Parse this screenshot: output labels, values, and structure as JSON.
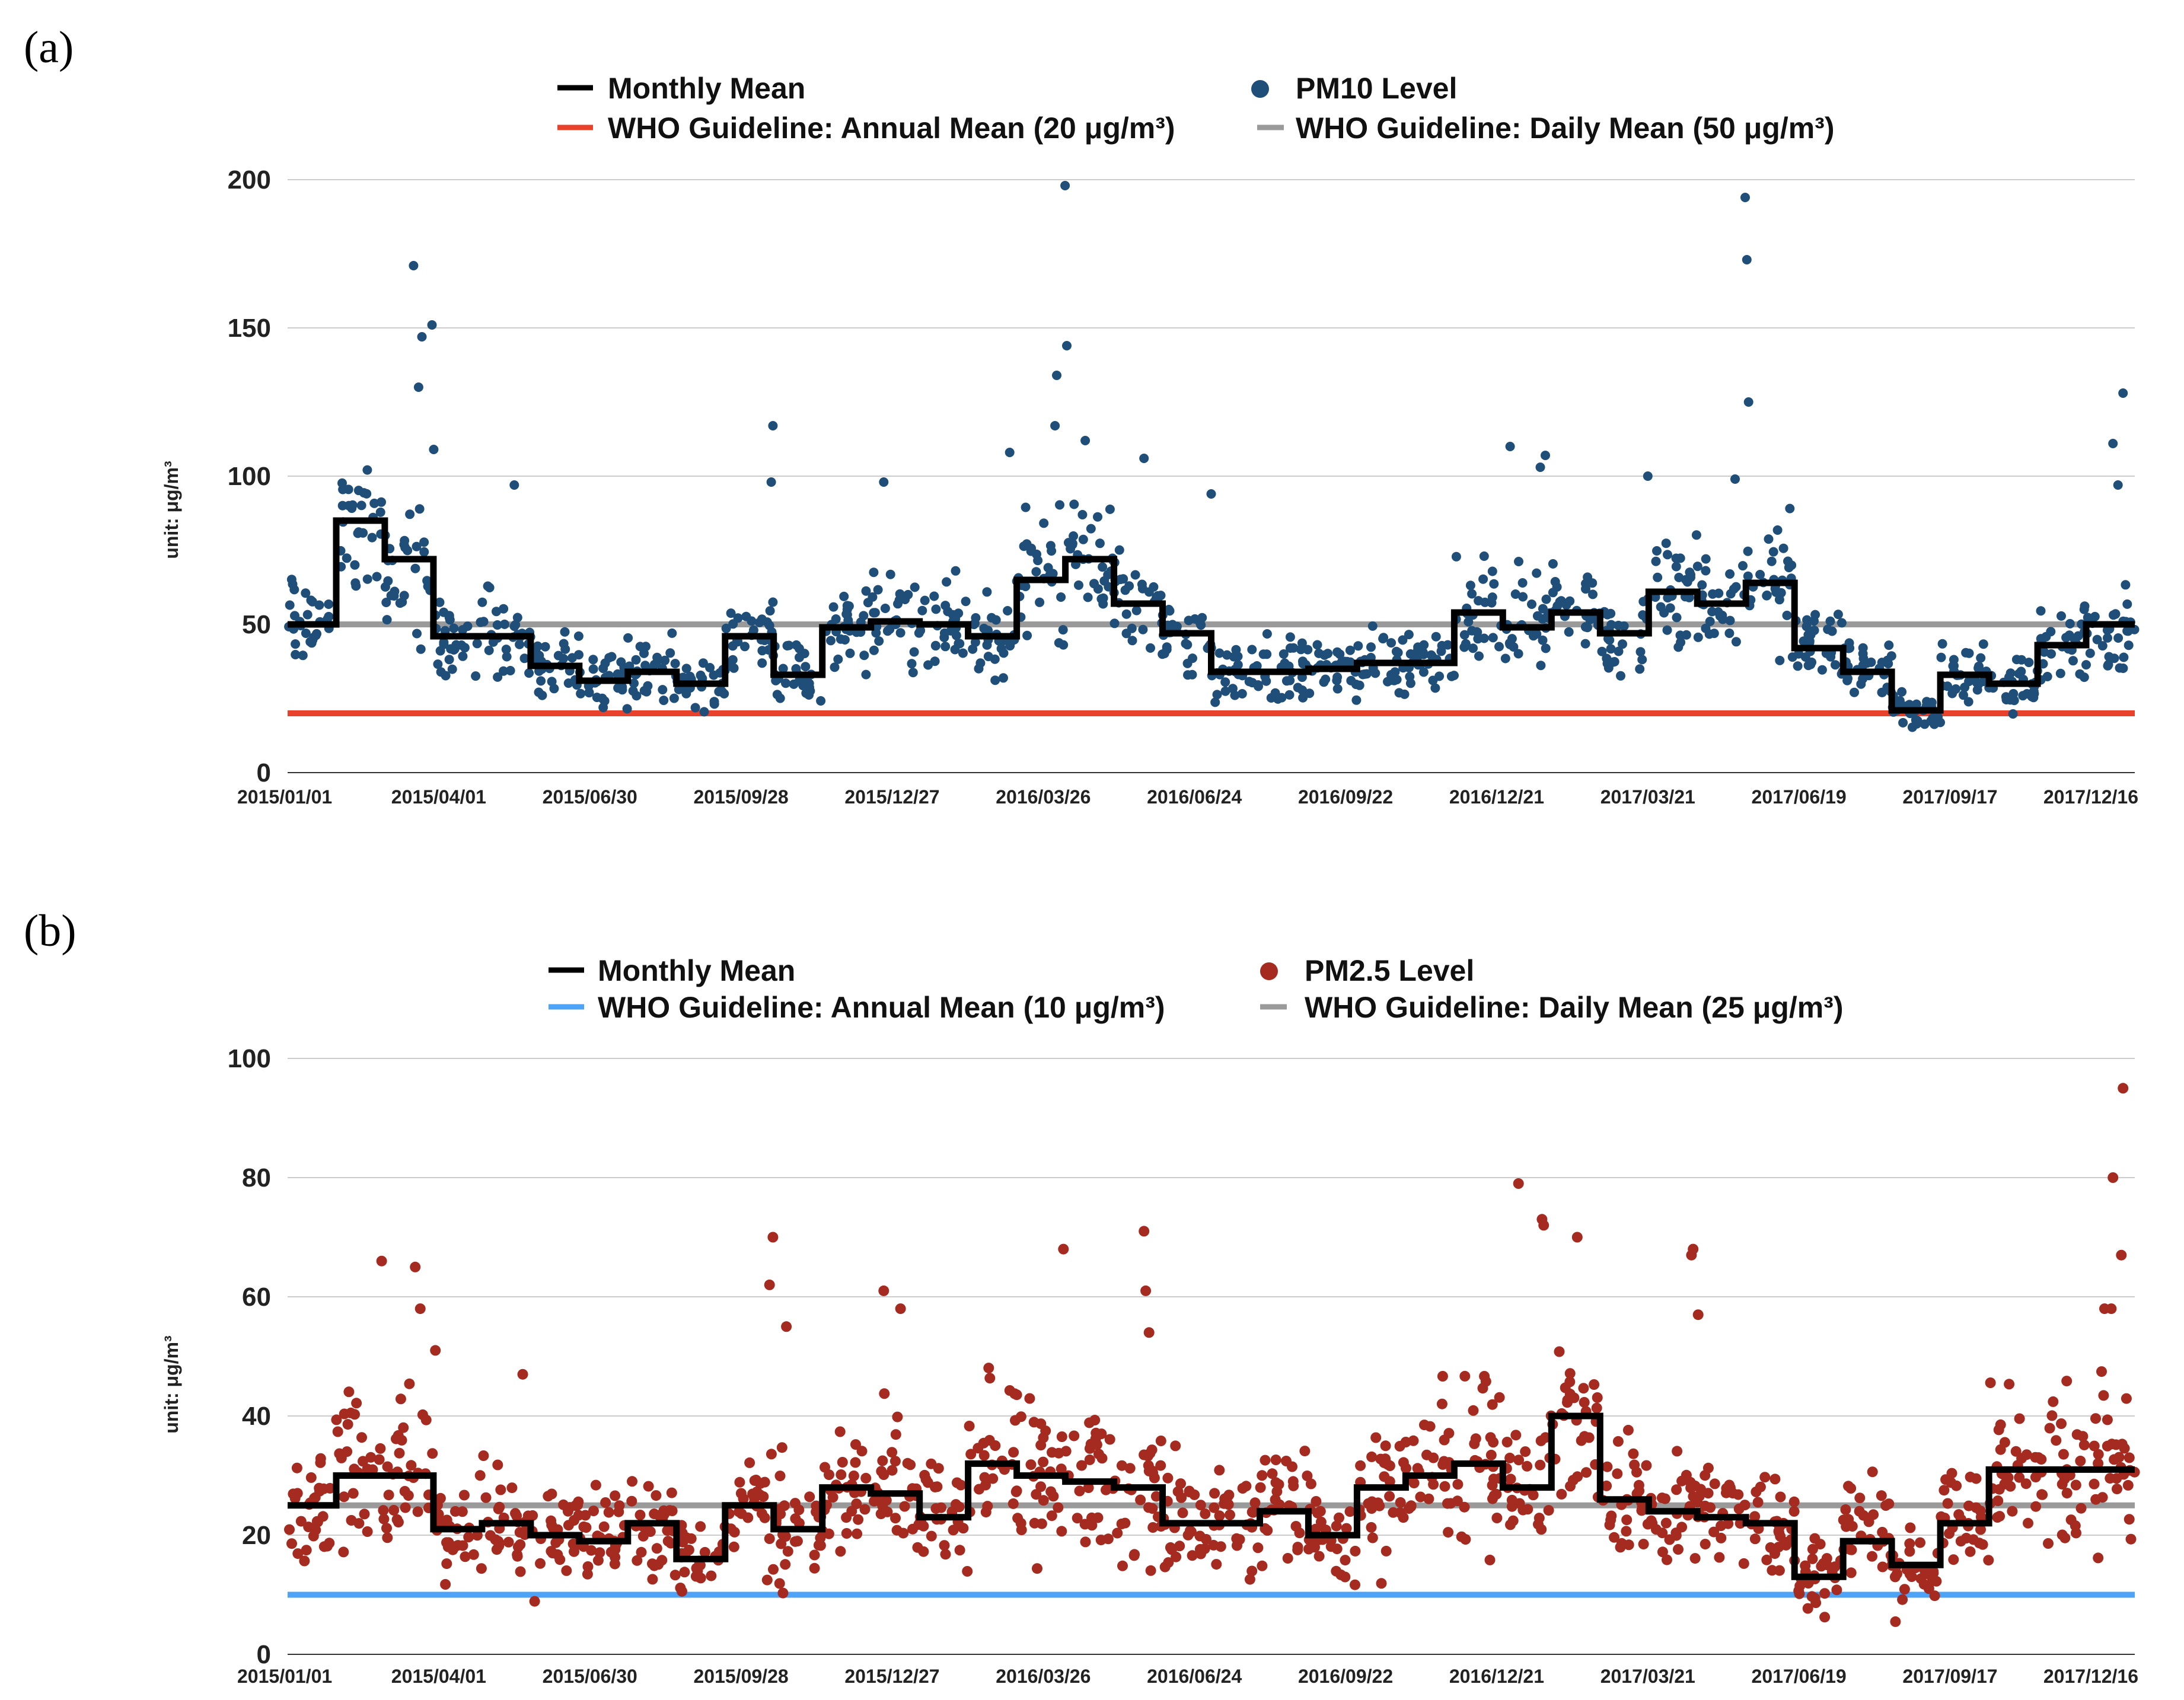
{
  "chart_data": [
    {
      "panel_label": "(a)",
      "type": "scatter",
      "ylabel": "unit: μg/m³",
      "ylim": [
        0,
        200
      ],
      "yticks": [
        0,
        50,
        100,
        150,
        200
      ],
      "xlim": [
        0,
        1100
      ],
      "x_unit": "days since 2015/01/01",
      "xticks": [
        {
          "day": 0,
          "label": "2015/01/01"
        },
        {
          "day": 90,
          "label": "2015/04/01"
        },
        {
          "day": 180,
          "label": "2015/06/30"
        },
        {
          "day": 270,
          "label": "2015/09/28"
        },
        {
          "day": 360,
          "label": "2015/12/27"
        },
        {
          "day": 450,
          "label": "2016/03/26"
        },
        {
          "day": 540,
          "label": "2016/06/24"
        },
        {
          "day": 630,
          "label": "2016/09/22"
        },
        {
          "day": 720,
          "label": "2016/12/21"
        },
        {
          "day": 810,
          "label": "2017/03/21"
        },
        {
          "day": 900,
          "label": "2017/06/19"
        },
        {
          "day": 990,
          "label": "2017/09/17"
        },
        {
          "day": 1080,
          "label": "2017/12/16"
        }
      ],
      "legend": {
        "monthly_mean": "Monthly Mean",
        "points": "PM10 Level",
        "annual_guideline": "WHO Guideline: Annual Mean (20 μg/m³)",
        "daily_guideline": "WHO Guideline: Daily Mean (50 μg/m³)"
      },
      "colors": {
        "points": "#1f4e79",
        "mean": "#000000",
        "annual": "#e8412c",
        "daily": "#9a9a9a",
        "grid": "#cccccc"
      },
      "guidelines": {
        "annual": 20,
        "daily": 50
      },
      "monthly_mean": [
        50,
        85,
        72,
        46,
        46,
        36,
        31,
        34,
        30,
        46,
        33,
        49,
        51,
        50,
        46,
        65,
        72,
        57,
        47,
        34,
        34,
        35,
        37,
        37,
        54,
        49,
        54,
        47,
        61,
        57,
        64,
        42,
        34,
        21,
        33,
        30,
        43,
        50
      ],
      "scatter_seed": 11,
      "points_per_month": 30,
      "noise_spread": 0.33,
      "outliers": [
        {
          "x": 75,
          "y": 171
        },
        {
          "x": 78,
          "y": 130
        },
        {
          "x": 80,
          "y": 147
        },
        {
          "x": 86,
          "y": 151
        },
        {
          "x": 87,
          "y": 109
        },
        {
          "x": 289,
          "y": 117
        },
        {
          "x": 288,
          "y": 98
        },
        {
          "x": 430,
          "y": 108
        },
        {
          "x": 463,
          "y": 198
        },
        {
          "x": 464,
          "y": 144
        },
        {
          "x": 458,
          "y": 134
        },
        {
          "x": 457,
          "y": 117
        },
        {
          "x": 475,
          "y": 112
        },
        {
          "x": 510,
          "y": 106
        },
        {
          "x": 550,
          "y": 94
        },
        {
          "x": 728,
          "y": 110
        },
        {
          "x": 746,
          "y": 103
        },
        {
          "x": 749,
          "y": 107
        },
        {
          "x": 810,
          "y": 100
        },
        {
          "x": 868,
          "y": 194
        },
        {
          "x": 869,
          "y": 173
        },
        {
          "x": 870,
          "y": 125
        },
        {
          "x": 862,
          "y": 99
        },
        {
          "x": 1093,
          "y": 128
        },
        {
          "x": 1087,
          "y": 111
        },
        {
          "x": 1090,
          "y": 97
        },
        {
          "x": 135,
          "y": 97
        },
        {
          "x": 355,
          "y": 98
        }
      ]
    },
    {
      "panel_label": "(b)",
      "type": "scatter",
      "ylabel": "unit: μg/m³",
      "ylim": [
        0,
        100
      ],
      "yticks": [
        0,
        20,
        40,
        60,
        80,
        100
      ],
      "xlim": [
        0,
        1100
      ],
      "x_unit": "days since 2015/01/01",
      "xticks": [
        {
          "day": 0,
          "label": "2015/01/01"
        },
        {
          "day": 90,
          "label": "2015/04/01"
        },
        {
          "day": 180,
          "label": "2015/06/30"
        },
        {
          "day": 270,
          "label": "2015/09/28"
        },
        {
          "day": 360,
          "label": "2015/12/27"
        },
        {
          "day": 450,
          "label": "2016/03/26"
        },
        {
          "day": 540,
          "label": "2016/06/24"
        },
        {
          "day": 630,
          "label": "2016/09/22"
        },
        {
          "day": 720,
          "label": "2016/12/21"
        },
        {
          "day": 810,
          "label": "2017/03/21"
        },
        {
          "day": 900,
          "label": "2017/06/19"
        },
        {
          "day": 990,
          "label": "2017/09/17"
        },
        {
          "day": 1080,
          "label": "2017/12/16"
        }
      ],
      "legend": {
        "monthly_mean": "Monthly Mean",
        "points": "PM2.5 Level",
        "annual_guideline": "WHO Guideline: Annual Mean (10 μg/m³)",
        "daily_guideline": "WHO Guideline: Daily Mean (25 μg/m³)"
      },
      "colors": {
        "points": "#a52a1f",
        "mean": "#000000",
        "annual": "#4da3f5",
        "daily": "#9a9a9a",
        "grid": "#cccccc"
      },
      "guidelines": {
        "annual": 10,
        "daily": 25
      },
      "monthly_mean": [
        25,
        30,
        30,
        21,
        22,
        20,
        19,
        22,
        16,
        25,
        21,
        28,
        27,
        23,
        32,
        30,
        29,
        28,
        22,
        22,
        24,
        20,
        28,
        30,
        32,
        28,
        40,
        26,
        24,
        23,
        22,
        13,
        19,
        15,
        22,
        31,
        31,
        31
      ],
      "scatter_seed": 29,
      "points_per_month": 30,
      "noise_spread": 0.45,
      "outliers": [
        {
          "x": 56,
          "y": 66
        },
        {
          "x": 76,
          "y": 65
        },
        {
          "x": 79,
          "y": 58
        },
        {
          "x": 88,
          "y": 51
        },
        {
          "x": 289,
          "y": 70
        },
        {
          "x": 287,
          "y": 62
        },
        {
          "x": 297,
          "y": 55
        },
        {
          "x": 355,
          "y": 61
        },
        {
          "x": 365,
          "y": 58
        },
        {
          "x": 462,
          "y": 68
        },
        {
          "x": 510,
          "y": 71
        },
        {
          "x": 511,
          "y": 61
        },
        {
          "x": 513,
          "y": 54
        },
        {
          "x": 733,
          "y": 79
        },
        {
          "x": 747,
          "y": 73
        },
        {
          "x": 748,
          "y": 72
        },
        {
          "x": 768,
          "y": 70
        },
        {
          "x": 836,
          "y": 67
        },
        {
          "x": 837,
          "y": 68
        },
        {
          "x": 1093,
          "y": 95
        },
        {
          "x": 1087,
          "y": 80
        },
        {
          "x": 1092,
          "y": 67
        },
        {
          "x": 1082,
          "y": 58
        },
        {
          "x": 1086,
          "y": 58
        },
        {
          "x": 840,
          "y": 57
        },
        {
          "x": 140,
          "y": 47
        }
      ]
    }
  ]
}
